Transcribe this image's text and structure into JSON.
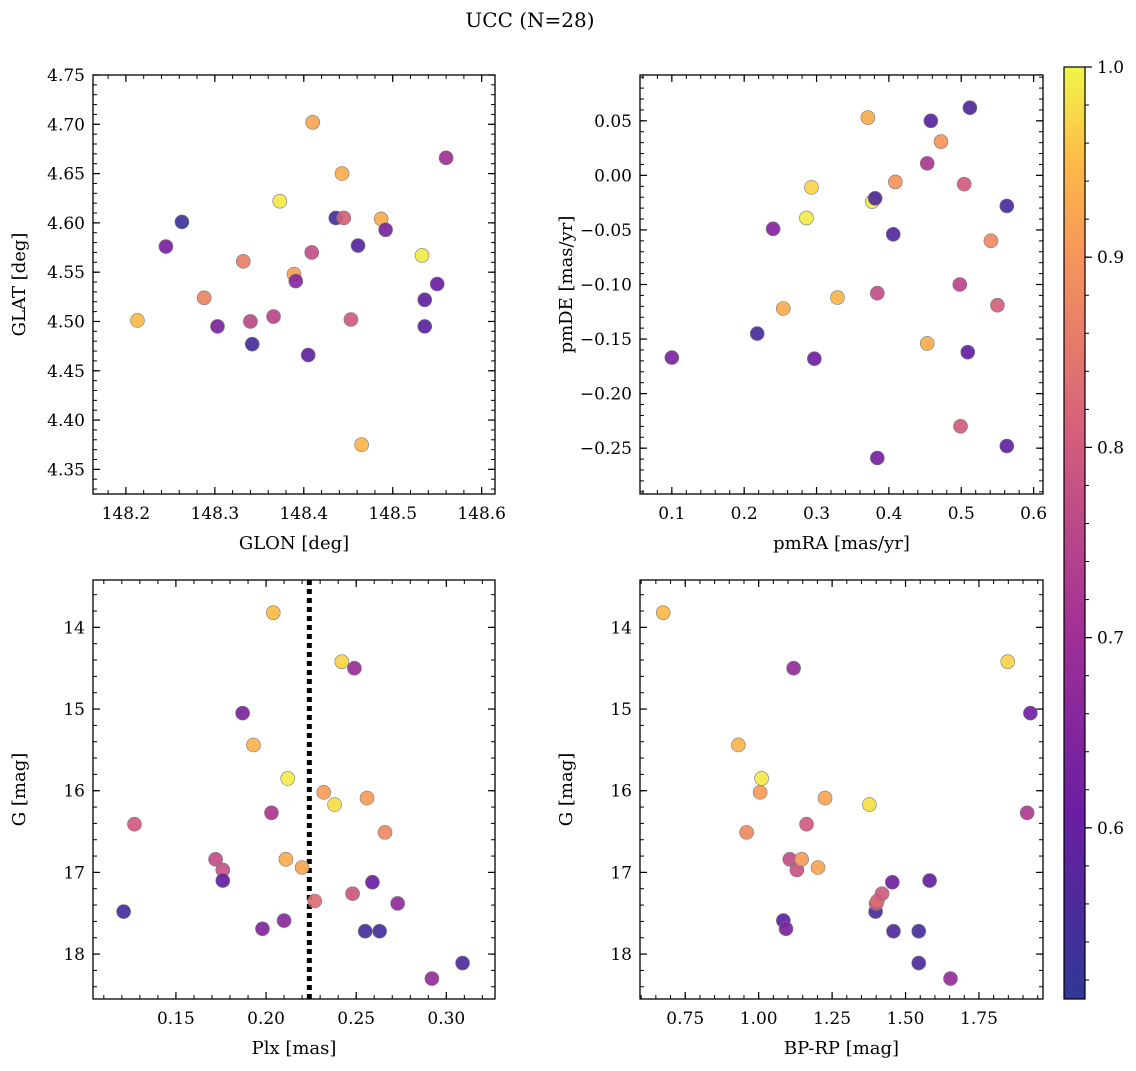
{
  "figure": {
    "title": "UCC (N=28)"
  },
  "colorbar": {
    "colormap": "plasma",
    "range": [
      0.51,
      1.0
    ],
    "ticks": [
      0.6,
      0.7,
      0.8,
      0.9,
      1.0
    ],
    "tick_labels": [
      "0.6",
      "0.7",
      "0.8",
      "0.9",
      "1.0"
    ]
  },
  "chart_data": [
    {
      "type": "scatter",
      "id": "glon-glat",
      "xlabel": "GLON [deg]",
      "ylabel": "GLAT [deg]",
      "xlim": [
        148.163,
        148.615
      ],
      "ylim": [
        4.325,
        4.75
      ],
      "xticks": [
        148.2,
        148.3,
        148.4,
        148.5,
        148.6
      ],
      "xtick_labels": [
        "148.2",
        "148.3",
        "148.4",
        "148.5",
        "148.6"
      ],
      "yticks": [
        4.35,
        4.4,
        4.45,
        4.5,
        4.55,
        4.6,
        4.65,
        4.7,
        4.75
      ],
      "ytick_labels": [
        "4.35",
        "4.40",
        "4.45",
        "4.50",
        "4.55",
        "4.60",
        "4.65",
        "4.70",
        "4.75"
      ],
      "points": [
        {
          "x": 148.213,
          "y": 4.501,
          "c": 0.95
        },
        {
          "x": 148.245,
          "y": 4.576,
          "c": 0.63
        },
        {
          "x": 148.263,
          "y": 4.601,
          "c": 0.53
        },
        {
          "x": 148.288,
          "y": 4.524,
          "c": 0.87
        },
        {
          "x": 148.303,
          "y": 4.495,
          "c": 0.64
        },
        {
          "x": 148.332,
          "y": 4.561,
          "c": 0.86
        },
        {
          "x": 148.34,
          "y": 4.5,
          "c": 0.76
        },
        {
          "x": 148.342,
          "y": 4.477,
          "c": 0.55
        },
        {
          "x": 148.366,
          "y": 4.505,
          "c": 0.75
        },
        {
          "x": 148.373,
          "y": 4.622,
          "c": 0.99
        },
        {
          "x": 148.389,
          "y": 4.548,
          "c": 0.91
        },
        {
          "x": 148.391,
          "y": 4.541,
          "c": 0.66
        },
        {
          "x": 148.405,
          "y": 4.466,
          "c": 0.59
        },
        {
          "x": 148.409,
          "y": 4.57,
          "c": 0.77
        },
        {
          "x": 148.41,
          "y": 4.702,
          "c": 0.92
        },
        {
          "x": 148.436,
          "y": 4.605,
          "c": 0.55
        },
        {
          "x": 148.443,
          "y": 4.65,
          "c": 0.93
        },
        {
          "x": 148.445,
          "y": 4.605,
          "c": 0.81
        },
        {
          "x": 148.453,
          "y": 4.502,
          "c": 0.8
        },
        {
          "x": 148.461,
          "y": 4.577,
          "c": 0.57
        },
        {
          "x": 148.465,
          "y": 4.375,
          "c": 0.94
        },
        {
          "x": 148.487,
          "y": 4.604,
          "c": 0.93
        },
        {
          "x": 148.492,
          "y": 4.593,
          "c": 0.64
        },
        {
          "x": 148.533,
          "y": 4.567,
          "c": 0.99
        },
        {
          "x": 148.536,
          "y": 4.522,
          "c": 0.59
        },
        {
          "x": 148.536,
          "y": 4.495,
          "c": 0.58
        },
        {
          "x": 148.55,
          "y": 4.538,
          "c": 0.61
        },
        {
          "x": 148.56,
          "y": 4.666,
          "c": 0.7
        }
      ]
    },
    {
      "type": "scatter",
      "id": "pmra-pmde",
      "xlabel": "pmRA [mas/yr]",
      "ylabel": "pmDE [mas/yr]",
      "xlim": [
        0.056,
        0.613
      ],
      "ylim": [
        -0.292,
        0.092
      ],
      "xticks": [
        0.1,
        0.2,
        0.3,
        0.4,
        0.5,
        0.6
      ],
      "xtick_labels": [
        "0.1",
        "0.2",
        "0.3",
        "0.4",
        "0.5",
        "0.6"
      ],
      "yticks": [
        -0.25,
        -0.2,
        -0.15,
        -0.1,
        -0.05,
        0.0,
        0.05
      ],
      "ytick_labels": [
        "−0.25",
        "−0.20",
        "−0.15",
        "−0.10",
        "−0.05",
        "0.00",
        "0.05"
      ],
      "points": [
        {
          "x": 0.1,
          "y": -0.167,
          "c": 0.64
        },
        {
          "x": 0.218,
          "y": -0.145,
          "c": 0.55
        },
        {
          "x": 0.24,
          "y": -0.049,
          "c": 0.65
        },
        {
          "x": 0.254,
          "y": -0.122,
          "c": 0.93
        },
        {
          "x": 0.286,
          "y": -0.039,
          "c": 0.99
        },
        {
          "x": 0.293,
          "y": -0.011,
          "c": 0.97
        },
        {
          "x": 0.297,
          "y": -0.168,
          "c": 0.62
        },
        {
          "x": 0.329,
          "y": -0.112,
          "c": 0.94
        },
        {
          "x": 0.371,
          "y": 0.053,
          "c": 0.93
        },
        {
          "x": 0.377,
          "y": -0.024,
          "c": 0.99
        },
        {
          "x": 0.381,
          "y": -0.021,
          "c": 0.56
        },
        {
          "x": 0.384,
          "y": -0.108,
          "c": 0.77
        },
        {
          "x": 0.384,
          "y": -0.259,
          "c": 0.63
        },
        {
          "x": 0.406,
          "y": -0.054,
          "c": 0.57
        },
        {
          "x": 0.409,
          "y": -0.006,
          "c": 0.9
        },
        {
          "x": 0.453,
          "y": -0.154,
          "c": 0.93
        },
        {
          "x": 0.453,
          "y": 0.011,
          "c": 0.72
        },
        {
          "x": 0.458,
          "y": 0.05,
          "c": 0.58
        },
        {
          "x": 0.472,
          "y": 0.031,
          "c": 0.9
        },
        {
          "x": 0.498,
          "y": -0.1,
          "c": 0.75
        },
        {
          "x": 0.499,
          "y": -0.23,
          "c": 0.8
        },
        {
          "x": 0.504,
          "y": -0.008,
          "c": 0.8
        },
        {
          "x": 0.509,
          "y": -0.162,
          "c": 0.6
        },
        {
          "x": 0.512,
          "y": 0.062,
          "c": 0.56
        },
        {
          "x": 0.541,
          "y": -0.06,
          "c": 0.88
        },
        {
          "x": 0.55,
          "y": -0.119,
          "c": 0.81
        },
        {
          "x": 0.563,
          "y": -0.028,
          "c": 0.55
        },
        {
          "x": 0.563,
          "y": -0.248,
          "c": 0.59
        }
      ]
    },
    {
      "type": "scatter",
      "id": "plx-g",
      "xlabel": "Plx [mas]",
      "ylabel": "G [mag]",
      "xlim": [
        0.104,
        0.327
      ],
      "ylim": [
        18.55,
        13.42
      ],
      "y_inverted": true,
      "xticks": [
        0.15,
        0.2,
        0.25,
        0.3
      ],
      "xtick_labels": [
        "0.15",
        "0.20",
        "0.25",
        "0.30"
      ],
      "yticks": [
        14,
        15,
        16,
        17,
        18
      ],
      "ytick_labels": [
        "14",
        "15",
        "16",
        "17",
        "18"
      ],
      "vline": {
        "x": 0.224,
        "style": "dotted"
      },
      "points": [
        {
          "x": 0.121,
          "y": 17.48,
          "c": 0.55
        },
        {
          "x": 0.127,
          "y": 16.41,
          "c": 0.8
        },
        {
          "x": 0.172,
          "y": 16.84,
          "c": 0.77
        },
        {
          "x": 0.176,
          "y": 16.97,
          "c": 0.78
        },
        {
          "x": 0.176,
          "y": 17.1,
          "c": 0.6
        },
        {
          "x": 0.187,
          "y": 15.05,
          "c": 0.64
        },
        {
          "x": 0.193,
          "y": 15.44,
          "c": 0.94
        },
        {
          "x": 0.198,
          "y": 17.69,
          "c": 0.65
        },
        {
          "x": 0.203,
          "y": 16.27,
          "c": 0.72
        },
        {
          "x": 0.204,
          "y": 13.82,
          "c": 0.95
        },
        {
          "x": 0.21,
          "y": 17.59,
          "c": 0.66
        },
        {
          "x": 0.211,
          "y": 16.84,
          "c": 0.93
        },
        {
          "x": 0.212,
          "y": 15.85,
          "c": 0.99
        },
        {
          "x": 0.22,
          "y": 16.94,
          "c": 0.92
        },
        {
          "x": 0.227,
          "y": 17.35,
          "c": 0.83
        },
        {
          "x": 0.232,
          "y": 16.02,
          "c": 0.91
        },
        {
          "x": 0.238,
          "y": 16.17,
          "c": 0.98
        },
        {
          "x": 0.242,
          "y": 14.42,
          "c": 0.97
        },
        {
          "x": 0.248,
          "y": 17.26,
          "c": 0.79
        },
        {
          "x": 0.249,
          "y": 14.5,
          "c": 0.69
        },
        {
          "x": 0.255,
          "y": 17.72,
          "c": 0.55
        },
        {
          "x": 0.256,
          "y": 16.09,
          "c": 0.91
        },
        {
          "x": 0.259,
          "y": 17.12,
          "c": 0.61
        },
        {
          "x": 0.263,
          "y": 17.72,
          "c": 0.55
        },
        {
          "x": 0.266,
          "y": 16.51,
          "c": 0.88
        },
        {
          "x": 0.273,
          "y": 17.38,
          "c": 0.68
        },
        {
          "x": 0.292,
          "y": 18.3,
          "c": 0.68
        },
        {
          "x": 0.309,
          "y": 18.11,
          "c": 0.56
        }
      ]
    },
    {
      "type": "scatter",
      "id": "bprp-g",
      "xlabel": "BP-RP [mag]",
      "ylabel": "G [mag]",
      "xlim": [
        0.596,
        1.968
      ],
      "ylim": [
        18.55,
        13.42
      ],
      "y_inverted": true,
      "xticks": [
        0.75,
        1.0,
        1.25,
        1.5,
        1.75
      ],
      "xtick_labels": [
        "0.75",
        "1.00",
        "1.25",
        "1.50",
        "1.75"
      ],
      "yticks": [
        14,
        15,
        16,
        17,
        18
      ],
      "ytick_labels": [
        "14",
        "15",
        "16",
        "17",
        "18"
      ],
      "points": [
        {
          "x": 0.675,
          "y": 13.82,
          "c": 0.95
        },
        {
          "x": 0.931,
          "y": 15.44,
          "c": 0.94
        },
        {
          "x": 0.959,
          "y": 16.51,
          "c": 0.88
        },
        {
          "x": 1.005,
          "y": 16.02,
          "c": 0.91
        },
        {
          "x": 1.01,
          "y": 15.85,
          "c": 0.99
        },
        {
          "x": 1.084,
          "y": 17.59,
          "c": 0.58
        },
        {
          "x": 1.093,
          "y": 17.69,
          "c": 0.64
        },
        {
          "x": 1.106,
          "y": 16.84,
          "c": 0.77
        },
        {
          "x": 1.119,
          "y": 14.5,
          "c": 0.68
        },
        {
          "x": 1.13,
          "y": 16.97,
          "c": 0.78
        },
        {
          "x": 1.146,
          "y": 16.84,
          "c": 0.91
        },
        {
          "x": 1.163,
          "y": 16.41,
          "c": 0.8
        },
        {
          "x": 1.202,
          "y": 16.94,
          "c": 0.92
        },
        {
          "x": 1.226,
          "y": 16.09,
          "c": 0.92
        },
        {
          "x": 1.377,
          "y": 16.17,
          "c": 0.98
        },
        {
          "x": 1.398,
          "y": 17.48,
          "c": 0.55
        },
        {
          "x": 1.4,
          "y": 17.38,
          "c": 0.79
        },
        {
          "x": 1.404,
          "y": 17.35,
          "c": 0.83
        },
        {
          "x": 1.42,
          "y": 17.26,
          "c": 0.8
        },
        {
          "x": 1.455,
          "y": 17.12,
          "c": 0.62
        },
        {
          "x": 1.459,
          "y": 17.72,
          "c": 0.57
        },
        {
          "x": 1.545,
          "y": 17.72,
          "c": 0.55
        },
        {
          "x": 1.545,
          "y": 18.11,
          "c": 0.56
        },
        {
          "x": 1.582,
          "y": 17.1,
          "c": 0.6
        },
        {
          "x": 1.653,
          "y": 18.3,
          "c": 0.68
        },
        {
          "x": 1.848,
          "y": 14.42,
          "c": 0.97
        },
        {
          "x": 1.914,
          "y": 16.27,
          "c": 0.73
        },
        {
          "x": 1.925,
          "y": 15.05,
          "c": 0.62
        }
      ]
    }
  ]
}
